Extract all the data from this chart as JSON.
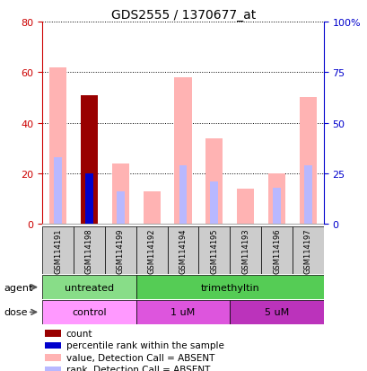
{
  "title": "GDS2555 / 1370677_at",
  "samples": [
    "GSM114191",
    "GSM114198",
    "GSM114199",
    "GSM114192",
    "GSM114194",
    "GSM114195",
    "GSM114193",
    "GSM114196",
    "GSM114197"
  ],
  "value_absent": [
    62,
    0,
    24,
    13,
    58,
    34,
    14,
    20,
    50
  ],
  "rank_absent": [
    33,
    0,
    16,
    0,
    29,
    21,
    0,
    18,
    29
  ],
  "count_val": [
    0,
    51,
    0,
    0,
    0,
    0,
    0,
    0,
    0
  ],
  "percentile_val": [
    0,
    25,
    0,
    0,
    0,
    0,
    0,
    0,
    0
  ],
  "ylim_left": [
    0,
    80
  ],
  "ylim_right": [
    0,
    100
  ],
  "yticks_left": [
    0,
    20,
    40,
    60,
    80
  ],
  "yticks_right": [
    0,
    25,
    50,
    75,
    100
  ],
  "ytick_labels_right": [
    "0",
    "25",
    "50",
    "75",
    "100%"
  ],
  "color_value_absent": "#ffb3b3",
  "color_rank_absent": "#b8b8ff",
  "color_count": "#990000",
  "color_percentile": "#0000cc",
  "agent_groups": [
    {
      "label": "untreated",
      "start": 0,
      "end": 3,
      "color": "#88dd88"
    },
    {
      "label": "trimethyltin",
      "start": 3,
      "end": 9,
      "color": "#55cc55"
    }
  ],
  "dose_groups": [
    {
      "label": "control",
      "start": 0,
      "end": 3,
      "color": "#ff99ff"
    },
    {
      "label": "1 uM",
      "start": 3,
      "end": 6,
      "color": "#dd55dd"
    },
    {
      "label": "5 uM",
      "start": 6,
      "end": 9,
      "color": "#bb33bb"
    }
  ],
  "legend_items": [
    {
      "color": "#990000",
      "label": "count"
    },
    {
      "color": "#0000cc",
      "label": "percentile rank within the sample"
    },
    {
      "color": "#ffb3b3",
      "label": "value, Detection Call = ABSENT"
    },
    {
      "color": "#b8b8ff",
      "label": "rank, Detection Call = ABSENT"
    }
  ],
  "bar_width": 0.55,
  "rank_bar_width": 0.25,
  "background_color": "#ffffff",
  "left_axis_color": "#cc0000",
  "right_axis_color": "#0000cc"
}
